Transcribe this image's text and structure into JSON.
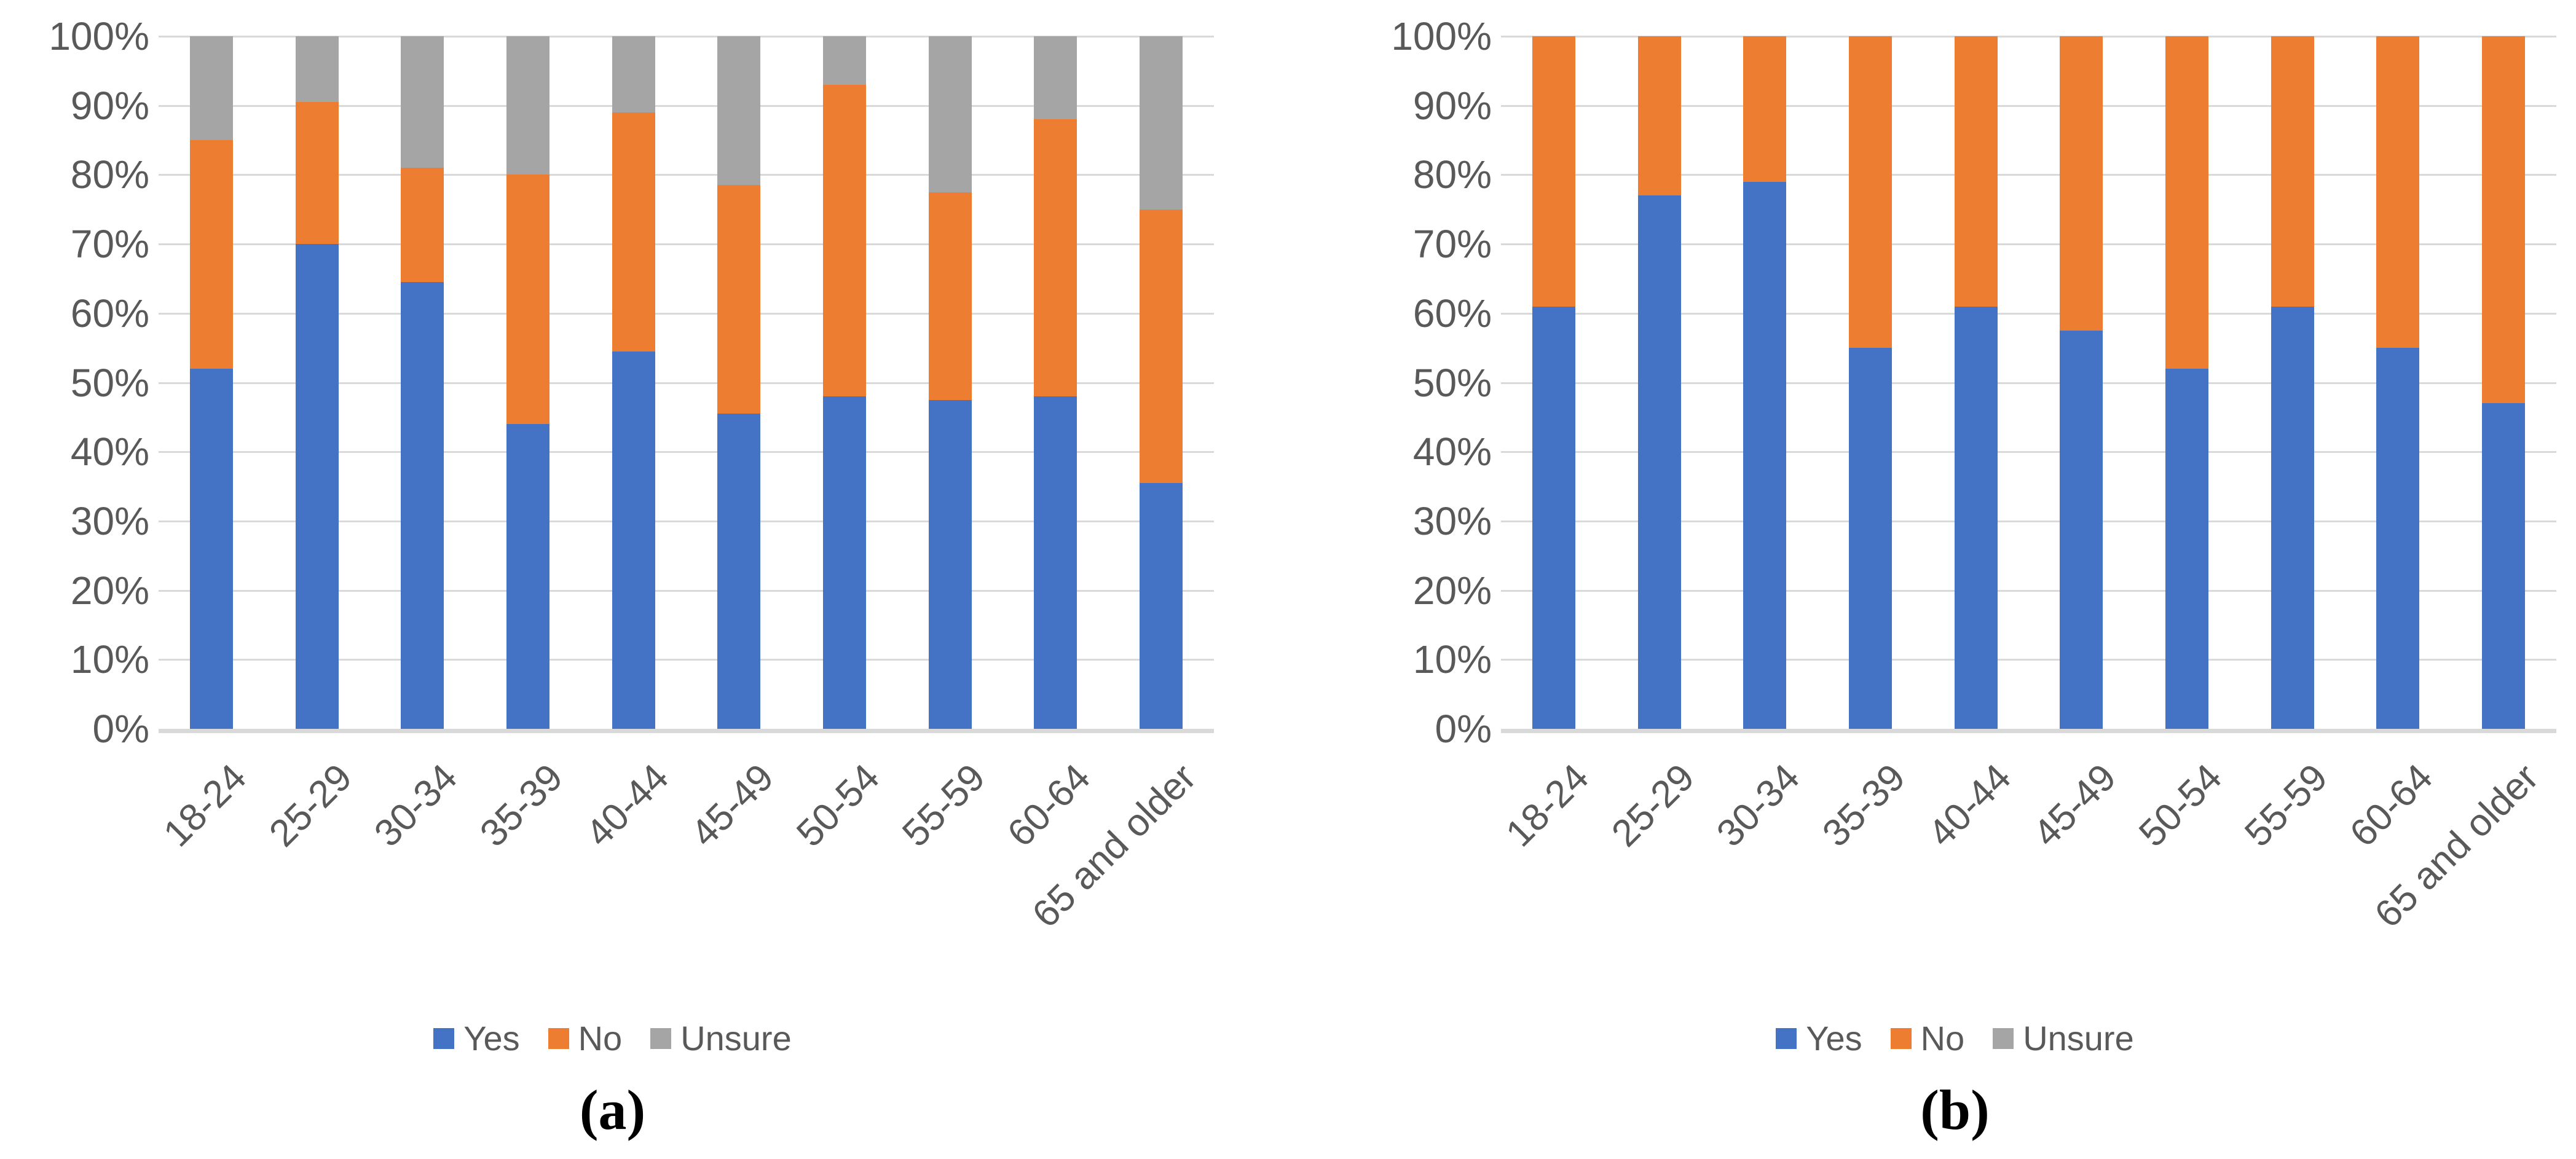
{
  "figure": {
    "description": "Two side-by-side 100% stacked column charts by age group",
    "background": "#FFFFFF"
  },
  "style": {
    "yes_color": "#4472C4",
    "no_color": "#ED7D31",
    "unsure_color": "#A5A5A5",
    "axis_text_color": "#595959",
    "gridline_color": "#D9D9D9",
    "axis_line_color": "#D9D9D9"
  },
  "axis": {
    "y_ticks": [
      "100%",
      "90%",
      "80%",
      "70%",
      "60%",
      "50%",
      "40%",
      "30%",
      "20%",
      "10%",
      "0%"
    ]
  },
  "legend": {
    "position": "bottom",
    "items": [
      {
        "label": "Yes",
        "color": "#4472C4"
      },
      {
        "label": "No",
        "color": "#ED7D31"
      },
      {
        "label": "Unsure",
        "color": "#A5A5A5"
      }
    ]
  },
  "chart_data": [
    {
      "id": "a",
      "type": "bar",
      "stacked": true,
      "units": "percent",
      "caption": "(a)",
      "title": "",
      "xlabel": "",
      "ylabel": "",
      "ylim": [
        0,
        100
      ],
      "grid": true,
      "legend_position": "bottom",
      "categories": [
        "18-24",
        "25-29",
        "30-34",
        "35-39",
        "40-44",
        "45-49",
        "50-54",
        "55-59",
        "60-64",
        "65 and older"
      ],
      "series": [
        {
          "name": "Yes",
          "color": "#4472C4",
          "values": [
            52,
            70,
            64.5,
            44,
            54.5,
            45.5,
            48,
            47.5,
            48,
            35.5
          ]
        },
        {
          "name": "No",
          "color": "#ED7D31",
          "values": [
            33,
            20.5,
            16.5,
            36,
            34.5,
            33,
            45,
            30,
            40,
            39.5
          ]
        },
        {
          "name": "Unsure",
          "color": "#A5A5A5",
          "values": [
            15,
            9.5,
            19,
            20,
            11,
            21.5,
            7,
            22.5,
            12,
            25
          ]
        }
      ]
    },
    {
      "id": "b",
      "type": "bar",
      "stacked": true,
      "units": "percent",
      "caption": "(b)",
      "title": "",
      "xlabel": "",
      "ylabel": "",
      "ylim": [
        0,
        100
      ],
      "grid": true,
      "legend_position": "bottom",
      "categories": [
        "18-24",
        "25-29",
        "30-34",
        "35-39",
        "40-44",
        "45-49",
        "50-54",
        "55-59",
        "60-64",
        "65 and older"
      ],
      "series": [
        {
          "name": "Yes",
          "color": "#4472C4",
          "values": [
            61,
            77,
            79,
            55,
            61,
            57.5,
            52,
            61,
            55,
            47
          ]
        },
        {
          "name": "No",
          "color": "#ED7D31",
          "values": [
            39,
            23,
            21,
            45,
            39,
            42.5,
            48,
            39,
            45,
            53
          ]
        },
        {
          "name": "Unsure",
          "color": "#A5A5A5",
          "values": [
            0,
            0,
            0,
            0,
            0,
            0,
            0,
            0,
            0,
            0
          ]
        }
      ]
    }
  ]
}
